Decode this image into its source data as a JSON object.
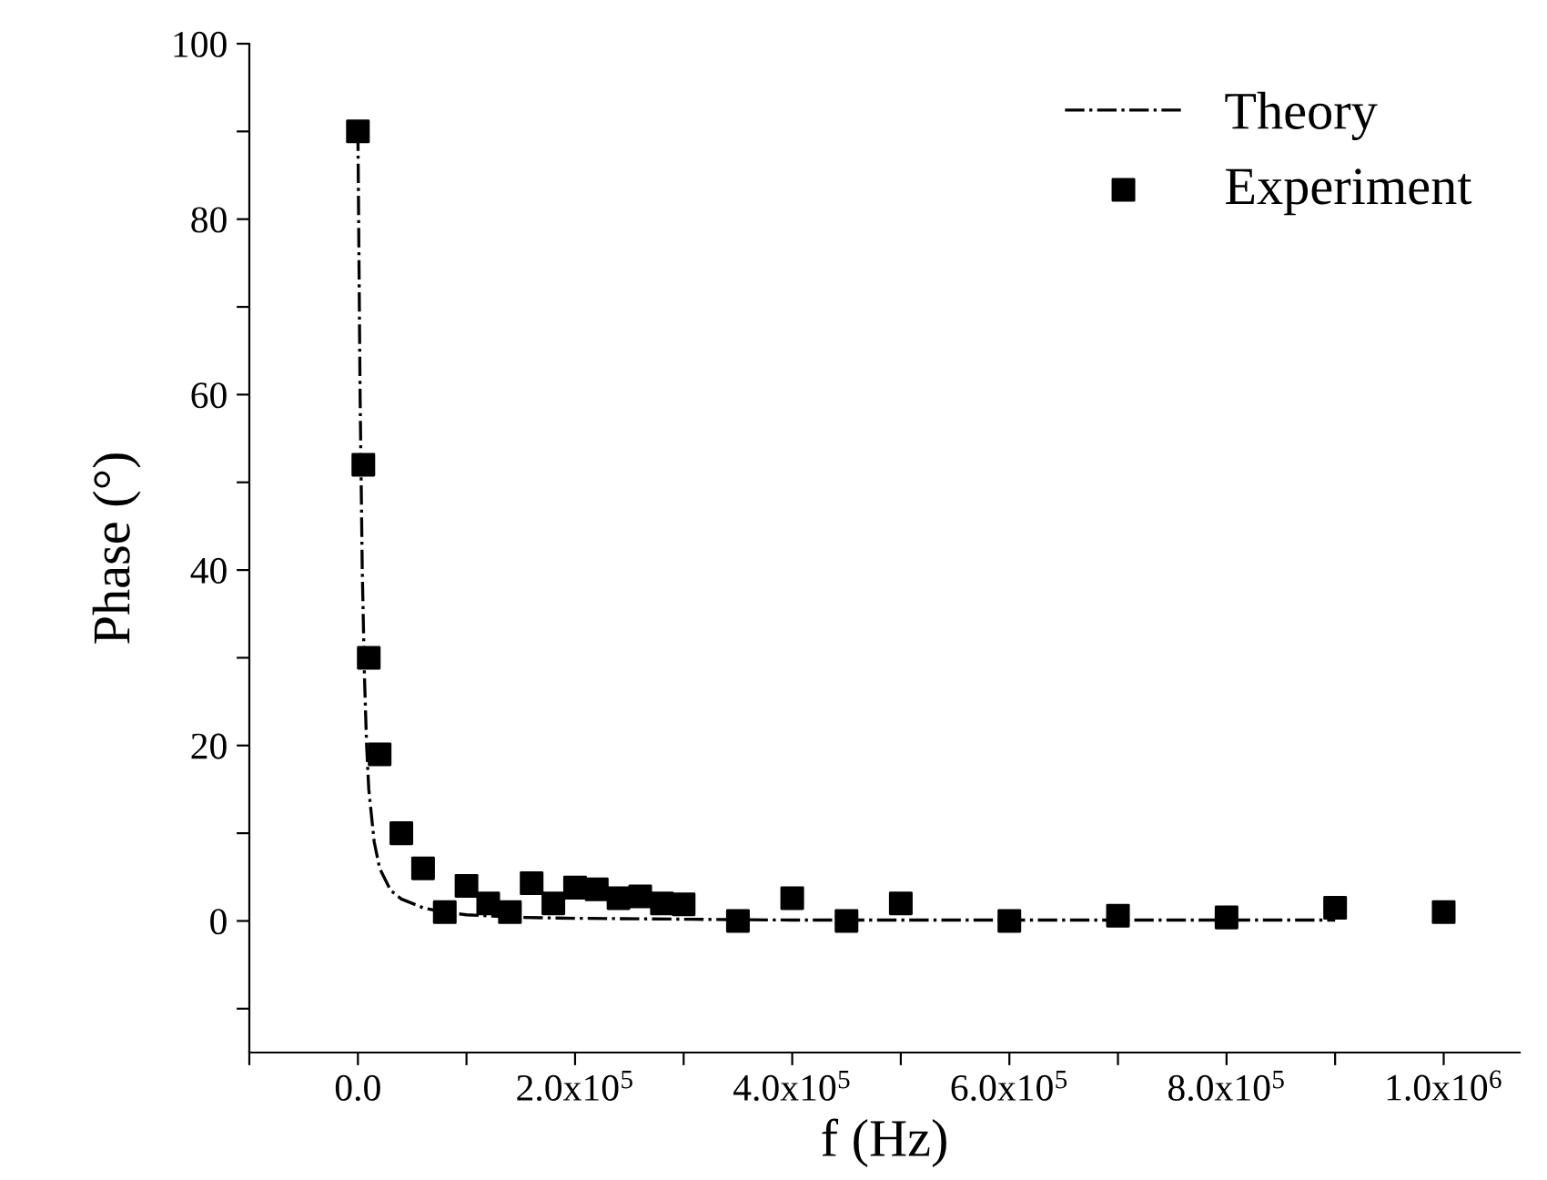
{
  "chart_data": {
    "type": "scatter",
    "xlabel": "f (Hz)",
    "ylabel": "Phase (°)",
    "xlim": [
      -100000,
      1070000
    ],
    "ylim": [
      -15,
      100
    ],
    "xticks": [
      {
        "value": -100000,
        "label": null
      },
      {
        "value": 0,
        "label": "0.0"
      },
      {
        "value": 100000,
        "label": null
      },
      {
        "value": 200000,
        "label": "2.0x10$^{5}$"
      },
      {
        "value": 300000,
        "label": null
      },
      {
        "value": 400000,
        "label": "4.0x10$^{5}$"
      },
      {
        "value": 500000,
        "label": null
      },
      {
        "value": 600000,
        "label": "6.0x10$^{5}$"
      },
      {
        "value": 700000,
        "label": null
      },
      {
        "value": 800000,
        "label": "8.0x10$^{5}$"
      },
      {
        "value": 900000,
        "label": null
      },
      {
        "value": 1000000,
        "label": "1.0x10$^{6}$"
      }
    ],
    "yticks": [
      {
        "value": -10,
        "label": null
      },
      0,
      {
        "value": 10,
        "label": null
      },
      20,
      {
        "value": 30,
        "label": null
      },
      40,
      {
        "value": 50,
        "label": null
      },
      60,
      {
        "value": 70,
        "label": null
      },
      80,
      {
        "value": 90,
        "label": null
      },
      100
    ],
    "legend": "top right",
    "grid": false,
    "series": [
      {
        "name": "Theory",
        "type": "line",
        "line_style": "dashdot",
        "marker": "none",
        "color": "#000000",
        "x": [
          0,
          2000,
          4000,
          6000,
          8000,
          10000,
          15000,
          20000,
          30000,
          40000,
          60000,
          80000,
          100000,
          150000,
          200000,
          300000,
          400000,
          600000,
          900000
        ],
        "values": [
          90,
          60,
          40,
          28,
          20,
          15,
          9,
          6,
          3.5,
          2.5,
          1.5,
          1,
          0.7,
          0.4,
          0.3,
          0.2,
          0.1,
          0.1,
          0.1
        ]
      },
      {
        "name": "Experiment",
        "marker": "square",
        "color": "#000000",
        "x": [
          0,
          5000,
          10000,
          20000,
          40000,
          60000,
          80000,
          100000,
          120000,
          140000,
          160000,
          180000,
          200000,
          220000,
          240000,
          260000,
          280000,
          300000,
          350000,
          400000,
          450000,
          500000,
          600000,
          700000,
          800000,
          900000,
          1000000
        ],
        "values": [
          90,
          52,
          30,
          19,
          10,
          6,
          1,
          4,
          2,
          1,
          4.3,
          2,
          3.8,
          3.6,
          2.6,
          2.8,
          2,
          1.9,
          0,
          2.6,
          0,
          2,
          0,
          0.6,
          0.4,
          1.5,
          1
        ]
      }
    ]
  }
}
